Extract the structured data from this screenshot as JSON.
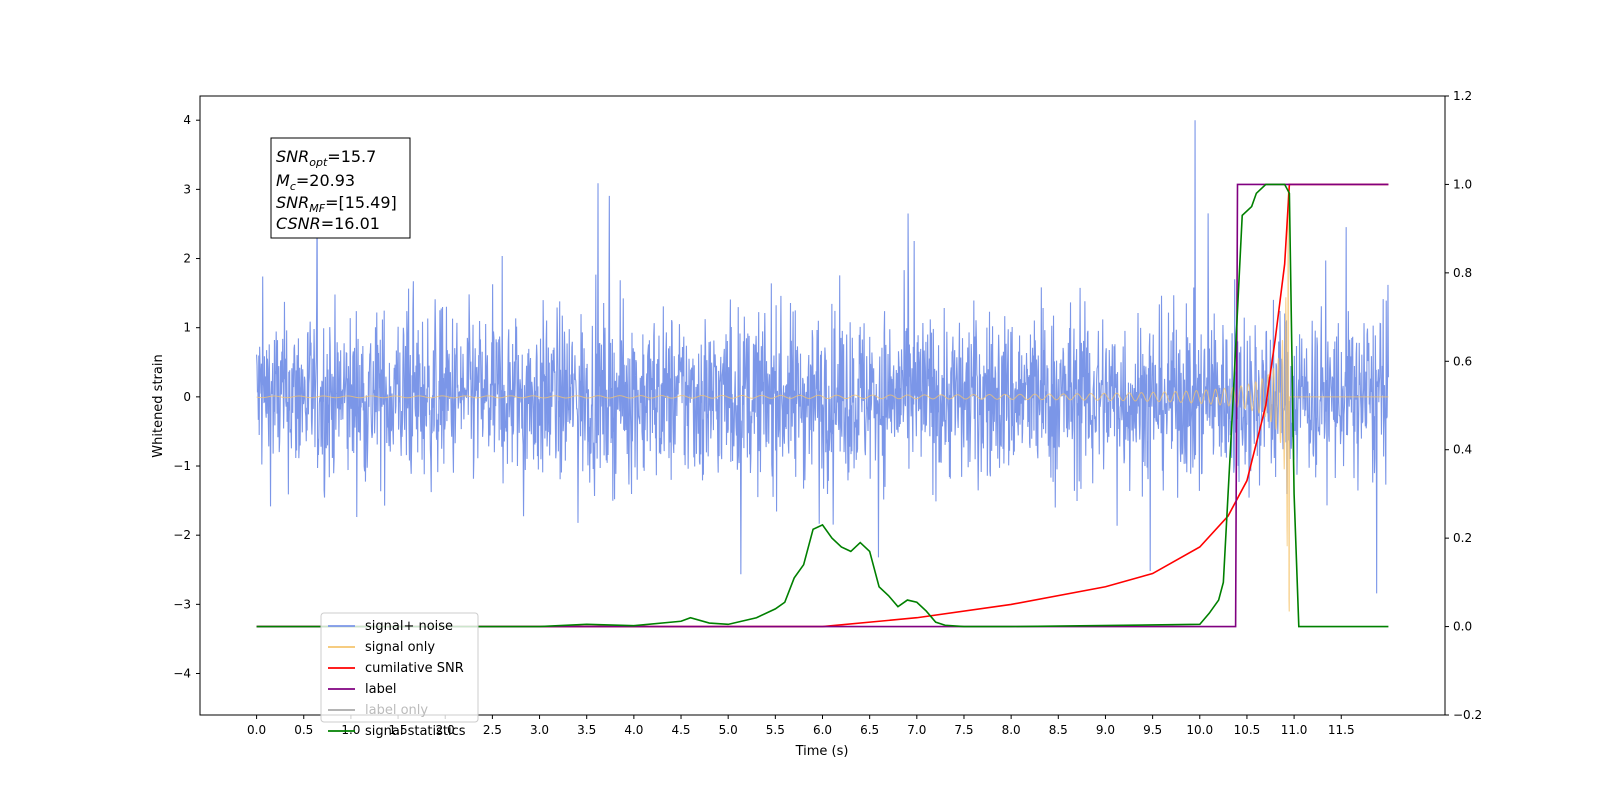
{
  "chart_data": {
    "type": "line",
    "xlabel": "Time (s)",
    "ylabel": "Whitened strain",
    "xlim": [
      -0.6,
      12.6
    ],
    "ylim": [
      -4.6,
      4.35
    ],
    "y2lim": [
      -0.2,
      1.2
    ],
    "x_ticks": [
      "0.0",
      "0.5",
      "1.0",
      "1.5",
      "2.0",
      "2.5",
      "3.0",
      "3.5",
      "4.0",
      "4.5",
      "5.0",
      "5.5",
      "6.0",
      "6.5",
      "7.0",
      "7.5",
      "8.0",
      "8.5",
      "9.0",
      "9.5",
      "10.0",
      "10.5",
      "11.0",
      "11.5"
    ],
    "y_ticks": [
      "4",
      "3",
      "2",
      "1",
      "0",
      "−1",
      "−2",
      "−3",
      "−4"
    ],
    "y2_ticks": [
      "1.2",
      "1.0",
      "0.8",
      "0.6",
      "0.4",
      "0.2",
      "0.0",
      "−0.2"
    ],
    "legend_placement": "lower-left",
    "grid": false,
    "annotation": {
      "snr_opt": {
        "sym": "SNR",
        "sub": "opt",
        "rest": "=15.7"
      },
      "mc": {
        "sym": "M",
        "sub": "c",
        "rest": "=20.93"
      },
      "snr_mf": {
        "sym": "SNR",
        "sub": "MF",
        "rest": "=[15.49]"
      },
      "csnr": {
        "sym": "CSNR",
        "sub": "",
        "rest": "=16.01"
      }
    },
    "series": [
      {
        "name": "signal+ noise",
        "color": "#7b96e8",
        "axis": "left",
        "kind": "noise",
        "x_range": [
          0.0,
          12.0
        ],
        "amplitude_typical": 2.2,
        "amplitude_max": 4.0
      },
      {
        "name": "signal only",
        "color": "#f5c46e",
        "axis": "left",
        "kind": "chirp",
        "merger_time": 10.95,
        "peak_amplitude": 3.1
      },
      {
        "name": "cumilative SNR",
        "color": "#ff0000",
        "axis": "right",
        "x": [
          0.0,
          6.0,
          7.0,
          8.0,
          9.0,
          9.5,
          10.0,
          10.3,
          10.5,
          10.7,
          10.8,
          10.9,
          10.95,
          11.0,
          12.0
        ],
        "y": [
          0.0,
          0.0,
          0.02,
          0.05,
          0.09,
          0.12,
          0.18,
          0.25,
          0.33,
          0.5,
          0.65,
          0.82,
          1.0,
          1.0,
          1.0
        ]
      },
      {
        "name": "label",
        "color": "#800080",
        "axis": "right",
        "x": [
          0.0,
          10.38,
          10.4,
          10.95,
          11.0,
          12.0
        ],
        "y": [
          0.0,
          0.0,
          1.0,
          1.0,
          1.0,
          1.0
        ]
      },
      {
        "name": "label only",
        "color": "#aaaaaa",
        "axis": "right",
        "legend_only": true
      },
      {
        "name": "signal statistics",
        "color": "#008000",
        "axis": "right",
        "x": [
          0.0,
          3.0,
          3.5,
          4.0,
          4.5,
          4.6,
          4.8,
          5.0,
          5.3,
          5.5,
          5.6,
          5.7,
          5.8,
          5.9,
          6.0,
          6.1,
          6.2,
          6.3,
          6.4,
          6.5,
          6.6,
          6.7,
          6.8,
          6.9,
          7.0,
          7.1,
          7.2,
          7.3,
          7.5,
          8.0,
          10.0,
          10.1,
          10.2,
          10.25,
          10.35,
          10.45,
          10.55,
          10.6,
          10.7,
          10.8,
          10.9,
          10.95,
          11.0,
          11.05,
          12.0
        ],
        "y": [
          0.0,
          0.0,
          0.005,
          0.002,
          0.012,
          0.02,
          0.008,
          0.005,
          0.02,
          0.04,
          0.055,
          0.11,
          0.14,
          0.22,
          0.23,
          0.2,
          0.18,
          0.17,
          0.19,
          0.17,
          0.09,
          0.07,
          0.045,
          0.06,
          0.055,
          0.035,
          0.01,
          0.003,
          0.0,
          0.0,
          0.005,
          0.03,
          0.06,
          0.1,
          0.5,
          0.93,
          0.95,
          0.98,
          1.0,
          1.0,
          1.0,
          0.98,
          0.3,
          0.0,
          0.0
        ]
      }
    ]
  }
}
